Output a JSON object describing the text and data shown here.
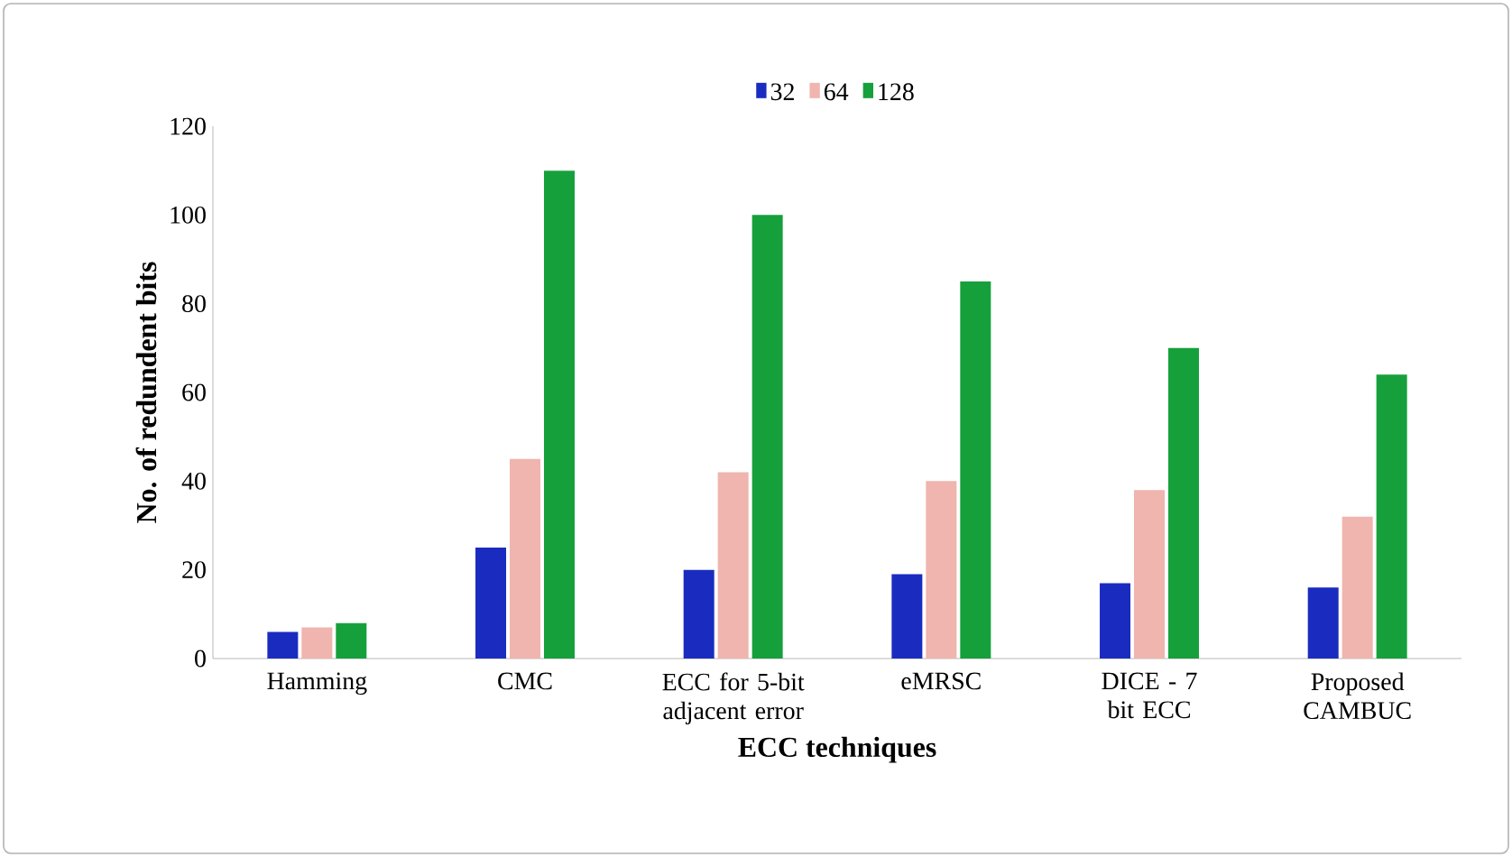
{
  "chart_data": {
    "type": "bar",
    "xlabel": "ECC techniques",
    "ylabel": "No. of redundent bits",
    "categories": [
      "Hamming",
      "CMC",
      "ECC for 5-bit adjacent error",
      "eMRSC",
      "DICE - 7 bit ECC",
      "Proposed CAMBUC"
    ],
    "series": [
      {
        "name": "32",
        "color": "#1a2cc0",
        "values": [
          6,
          25,
          20,
          19,
          17,
          16
        ]
      },
      {
        "name": "64",
        "color": "#efb5ae",
        "values": [
          7,
          45,
          42,
          40,
          38,
          32
        ]
      },
      {
        "name": "128",
        "color": "#16a03c",
        "values": [
          8,
          110,
          100,
          85,
          70,
          64
        ]
      }
    ],
    "ylim": [
      0,
      120
    ],
    "yticks": [
      0,
      20,
      40,
      60,
      80,
      100,
      120
    ],
    "grid": false,
    "legend": "top"
  }
}
